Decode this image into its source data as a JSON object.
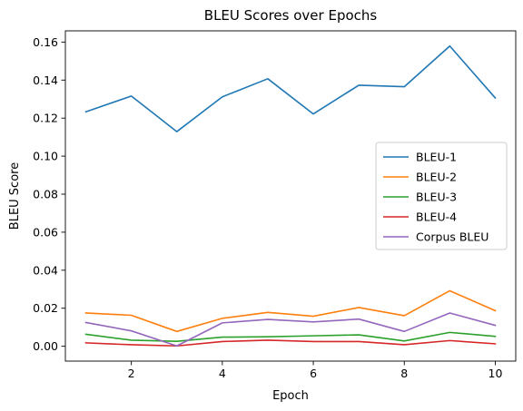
{
  "chart_data": {
    "type": "line",
    "title": "BLEU Scores over Epochs",
    "xlabel": "Epoch",
    "ylabel": "BLEU Score",
    "x": [
      1,
      2,
      3,
      4,
      5,
      6,
      7,
      8,
      9,
      10
    ],
    "xlim": [
      0.55,
      10.45
    ],
    "ylim": [
      -0.0078,
      0.1659
    ],
    "xticks": [
      2,
      4,
      6,
      8,
      10
    ],
    "yticks": [
      0.0,
      0.02,
      0.04,
      0.06,
      0.08,
      0.1,
      0.12,
      0.14,
      0.16
    ],
    "ytick_labels": [
      "0.00",
      "0.02",
      "0.04",
      "0.06",
      "0.08",
      "0.10",
      "0.12",
      "0.14",
      "0.16"
    ],
    "xtick_labels": [
      "2",
      "4",
      "6",
      "8",
      "10"
    ],
    "grid": false,
    "legend_position": "center-right",
    "series": [
      {
        "name": "BLEU-1",
        "color": "#1f77b4",
        "values": [
          0.1233,
          0.1316,
          0.1129,
          0.1312,
          0.1407,
          0.1222,
          0.1373,
          0.1365,
          0.1579,
          0.1306
        ]
      },
      {
        "name": "BLEU-2",
        "color": "#ff7f0e",
        "values": [
          0.0175,
          0.0163,
          0.0078,
          0.0147,
          0.0178,
          0.0158,
          0.0204,
          0.0161,
          0.0292,
          0.0187
        ]
      },
      {
        "name": "BLEU-3",
        "color": "#2ca02c",
        "values": [
          0.0063,
          0.0032,
          0.0026,
          0.0048,
          0.005,
          0.0055,
          0.006,
          0.0028,
          0.0073,
          0.0052
        ]
      },
      {
        "name": "BLEU-4",
        "color": "#d62728",
        "values": [
          0.0018,
          0.0008,
          0.0002,
          0.0025,
          0.0032,
          0.0025,
          0.0025,
          0.0008,
          0.003,
          0.0013
        ]
      },
      {
        "name": "Corpus BLEU",
        "color": "#9467bd",
        "values": [
          0.0125,
          0.0081,
          0.0002,
          0.0123,
          0.0141,
          0.0128,
          0.0143,
          0.0078,
          0.0175,
          0.011
        ]
      }
    ]
  }
}
